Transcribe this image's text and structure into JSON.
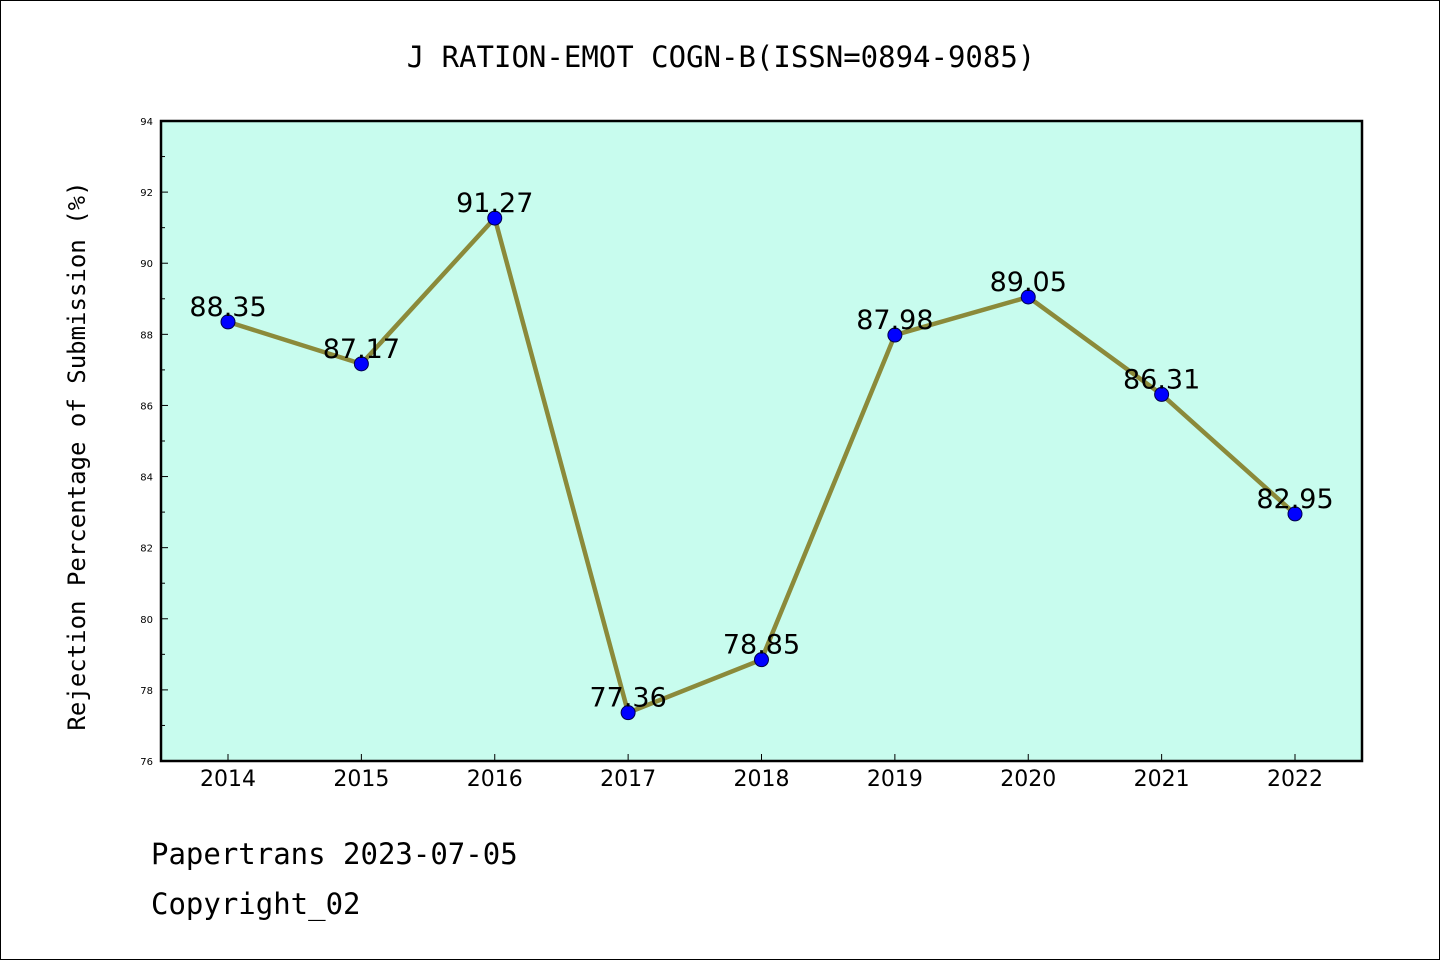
{
  "chart_data": {
    "type": "line",
    "title": "J RATION-EMOT COGN-B(ISSN=0894-9085)",
    "xlabel": "",
    "ylabel": "Rejection Percentage of Submission (%)",
    "categories": [
      "2014",
      "2015",
      "2016",
      "2017",
      "2018",
      "2019",
      "2020",
      "2021",
      "2022"
    ],
    "series": [
      {
        "values": [
          88.35,
          87.17,
          91.27,
          77.36,
          78.85,
          87.98,
          89.05,
          86.31,
          82.95
        ],
        "labels": [
          "88.35",
          "87.17",
          "91.27",
          "77.36",
          "78.85",
          "87.98",
          "89.05",
          "86.31",
          "82.95"
        ]
      }
    ],
    "ylim": [
      76,
      94
    ],
    "yticks": [
      76,
      78,
      80,
      82,
      84,
      86,
      88,
      90,
      92,
      94
    ],
    "grid": false,
    "colors": {
      "plot_background": "#c8fcee",
      "line": "#8b8a3a",
      "marker": "#0000ff"
    }
  },
  "footer": {
    "line1": "Papertrans 2023-07-05",
    "line2": "Copyright_02"
  }
}
